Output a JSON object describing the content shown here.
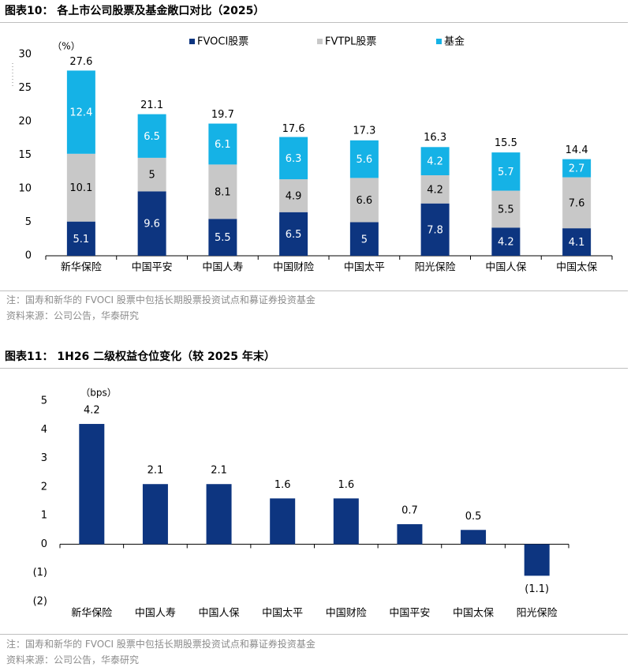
{
  "figure1": {
    "title": "图表10： 各上市公司股票及基金敞口对比（2025）",
    "note": "注：国寿和新华的 FVOCI 股票中包括长期股票投资试点和募证券投资基金",
    "source": "资料来源：公司公告，华泰研究"
  },
  "figure2": {
    "title": "图表11： 1H26 二级权益仓位变化（较 2025 年末）",
    "note": "注：国寿和新华的 FVOCI 股票中包括长期股票投资试点和募证券投资基金",
    "source": "资料来源：公司公告，华泰研究"
  },
  "chart_data": [
    {
      "type": "bar",
      "stacked": true,
      "unit_label": "（%）",
      "categories": [
        "新华保险",
        "中国平安",
        "中国人寿",
        "中国财险",
        "中国太平",
        "阳光保险",
        "中国人保",
        "中国太保"
      ],
      "series": [
        {
          "name": "FVOCI股票",
          "color": "#0d3580",
          "values": [
            5.1,
            9.6,
            5.5,
            6.5,
            5.0,
            7.8,
            4.2,
            4.1
          ]
        },
        {
          "name": "FVTPL股票",
          "color": "#c8c8c8",
          "values": [
            10.1,
            5.0,
            8.1,
            4.9,
            6.6,
            4.2,
            5.5,
            7.6
          ]
        },
        {
          "name": "基金",
          "color": "#15b2e6",
          "values": [
            12.4,
            6.5,
            6.1,
            6.3,
            5.6,
            4.2,
            5.7,
            2.7
          ]
        }
      ],
      "totals": [
        27.6,
        21.1,
        19.7,
        17.6,
        17.3,
        16.3,
        15.5,
        14.4
      ],
      "ylim": [
        0,
        30
      ],
      "yticks": [
        "0",
        "5",
        "10",
        "15",
        "20",
        "25",
        "30"
      ],
      "legend": "top"
    },
    {
      "type": "bar",
      "unit_label": "（bps）",
      "categories": [
        "新华保险",
        "中国人寿",
        "中国人保",
        "中国太平",
        "中国财险",
        "中国平安",
        "中国太保",
        "阳光保险"
      ],
      "values": [
        4.2,
        2.1,
        2.1,
        1.6,
        1.6,
        0.7,
        0.5,
        -1.1
      ],
      "value_labels": [
        "4.2",
        "2.1",
        "2.1",
        "1.6",
        "1.6",
        "0.7",
        "0.5",
        "(1.1)"
      ],
      "color": "#0d3580",
      "ylim": [
        -2,
        5
      ],
      "yticks": [
        "(2)",
        "(1)",
        "0",
        "1",
        "2",
        "3",
        "4",
        "5"
      ]
    }
  ]
}
